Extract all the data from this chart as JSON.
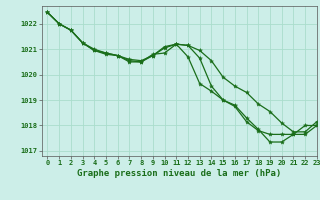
{
  "title": "Graphe pression niveau de la mer (hPa)",
  "bg_color": "#cceee8",
  "grid_color": "#aaddcc",
  "line_color": "#1a6e1a",
  "marker_color": "#1a6e1a",
  "xlim": [
    -0.5,
    23
  ],
  "ylim": [
    1016.8,
    1022.7
  ],
  "yticks": [
    1017,
    1018,
    1019,
    1020,
    1021,
    1022
  ],
  "xticks": [
    0,
    1,
    2,
    3,
    4,
    5,
    6,
    7,
    8,
    9,
    10,
    11,
    12,
    13,
    14,
    15,
    16,
    17,
    18,
    19,
    20,
    21,
    22,
    23
  ],
  "series1": [
    1022.45,
    1022.0,
    1021.75,
    1021.25,
    1020.95,
    1020.8,
    1020.75,
    1020.5,
    1020.5,
    1020.75,
    1021.1,
    1021.2,
    1020.7,
    1019.65,
    1019.35,
    1019.0,
    1018.8,
    1018.3,
    1017.85,
    1017.35,
    1017.35,
    1017.65,
    1017.65,
    1018.0
  ],
  "series2": [
    1022.45,
    1022.0,
    1021.75,
    1021.25,
    1020.95,
    1020.85,
    1020.75,
    1020.55,
    1020.5,
    1020.8,
    1020.85,
    1021.2,
    1021.15,
    1020.65,
    1019.55,
    1019.0,
    1018.75,
    1018.15,
    1017.8,
    1017.65,
    1017.65,
    1017.65,
    1018.0,
    1018.0
  ],
  "series3": [
    1022.45,
    1022.0,
    1021.75,
    1021.25,
    1021.0,
    1020.85,
    1020.75,
    1020.6,
    1020.55,
    1020.75,
    1021.05,
    1021.2,
    1021.15,
    1020.95,
    1020.55,
    1019.9,
    1019.55,
    1019.3,
    1018.85,
    1018.55,
    1018.1,
    1017.75,
    1017.75,
    1018.15
  ],
  "label_fontsize": 5.0,
  "xlabel_fontsize": 6.5
}
